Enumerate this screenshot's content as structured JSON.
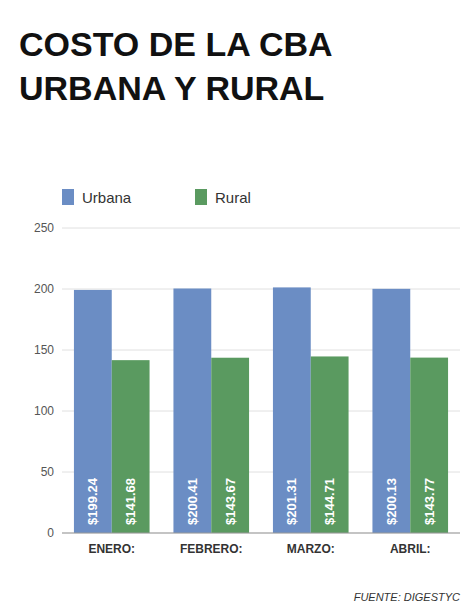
{
  "chart_data": {
    "type": "bar",
    "title": "COSTO DE LA CBA",
    "subtitle": "URBANA Y RURAL",
    "categories": [
      "ENERO:",
      "FEBRERO:",
      "MARZO:",
      "ABRIL:"
    ],
    "series": [
      {
        "name": "Urbana",
        "color": "#6b8dc4",
        "values": [
          199.24,
          200.41,
          201.31,
          200.13
        ],
        "value_labels": [
          "$199.24",
          "$200.41",
          "$201.31",
          "$200.13"
        ]
      },
      {
        "name": "Rural",
        "color": "#5a9a60",
        "values": [
          141.68,
          143.67,
          144.71,
          143.77
        ],
        "value_labels": [
          "$141.68",
          "$143.67",
          "$144.71",
          "$143.77"
        ]
      }
    ],
    "ylim": [
      0,
      250
    ],
    "yticks": [
      0,
      50,
      100,
      150,
      200,
      250
    ],
    "grid": true,
    "legend": "top-left",
    "data_labels": true,
    "annotations": [
      "FUENTE: DIGESTYC"
    ]
  }
}
